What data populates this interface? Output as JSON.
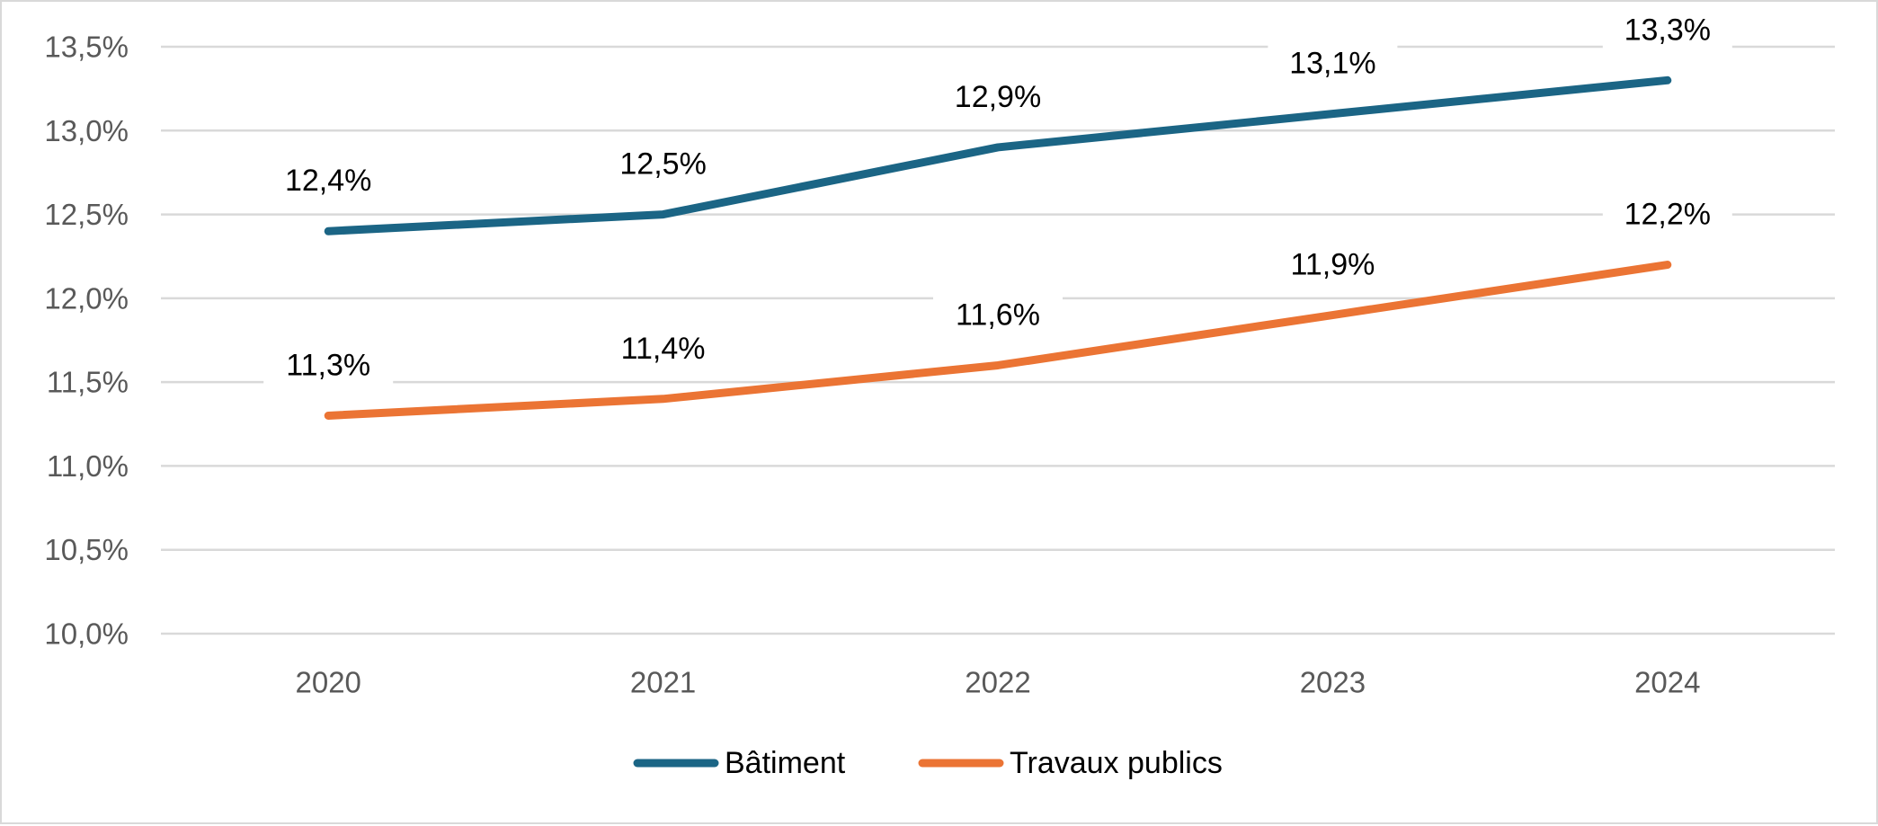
{
  "chart_data": {
    "type": "line",
    "title": "",
    "xlabel": "",
    "ylabel": "",
    "categories": [
      "2020",
      "2021",
      "2022",
      "2023",
      "2024"
    ],
    "ylim": [
      10.0,
      13.5
    ],
    "yticks": [
      10.0,
      10.5,
      11.0,
      11.5,
      12.0,
      12.5,
      13.0,
      13.5
    ],
    "ytick_labels": [
      "10,0%",
      "10,5%",
      "11,0%",
      "11,5%",
      "12,0%",
      "12,5%",
      "13,0%",
      "13,5%"
    ],
    "grid": true,
    "legend_position": "bottom",
    "series": [
      {
        "name": "Bâtiment",
        "color": "#1b6585",
        "values": [
          12.4,
          12.5,
          12.9,
          13.1,
          13.3
        ],
        "labels": [
          "12,4%",
          "12,5%",
          "12,9%",
          "13,1%",
          "13,3%"
        ]
      },
      {
        "name": "Travaux publics",
        "color": "#eb7434",
        "values": [
          11.3,
          11.4,
          11.6,
          11.9,
          12.2
        ],
        "labels": [
          "11,3%",
          "11,4%",
          "11,6%",
          "11,9%",
          "12,2%"
        ]
      }
    ]
  }
}
